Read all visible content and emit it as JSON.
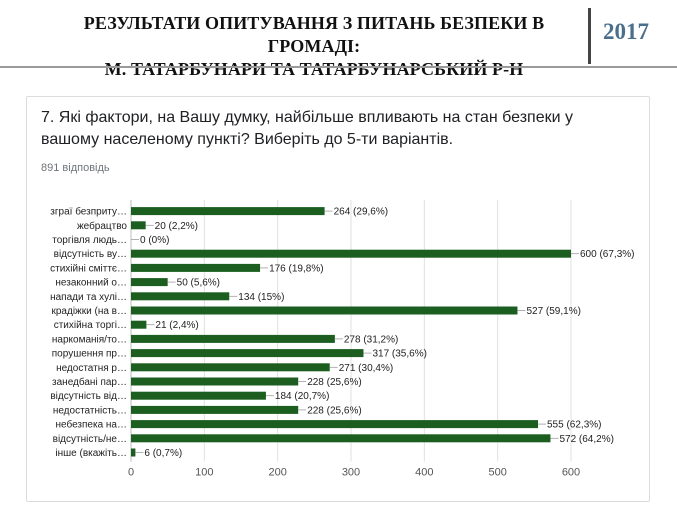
{
  "header": {
    "title_line1": "РЕЗУЛЬТАТИ ОПИТУВАННЯ З ПИТАНЬ БЕЗПЕКИ В ГРОМАДІ:",
    "title_line2": "М. ТАТАРБУНАРИ ТА ТАТАРБУНАРСЬКИЙ Р-Н",
    "year": "2017"
  },
  "question": {
    "text": "7. Які фактори, на Вашу думку, найбільше впливають на стан безпеки у вашому населеному пункті? Виберіть до 5-ти варіантів.",
    "responses": "891 відповідь"
  },
  "colors": {
    "bar": "#1b5e20",
    "grid": "#e0e0e0",
    "label": "#222222",
    "tick": "#555555"
  },
  "chart_data": {
    "type": "bar",
    "orientation": "horizontal",
    "categories": [
      "зграї безприту…",
      "жебрацтво",
      "торгівля людь…",
      "відсутність ву…",
      "стихійні сміттє…",
      "незаконний о…",
      "напади та хулі…",
      "крадіжки (на в…",
      "стихійна торгі…",
      "наркоманія/то…",
      "порушення пр…",
      "недостатня р…",
      "занедбані пар…",
      "відсутність від…",
      "недостатність…",
      "небезпека на…",
      "відсутність/не…",
      "інше (вкажіть…"
    ],
    "values": [
      264,
      20,
      0,
      600,
      176,
      50,
      134,
      527,
      21,
      278,
      317,
      271,
      228,
      184,
      228,
      555,
      572,
      6
    ],
    "value_labels": [
      "264 (29,6%)",
      "20 (2,2%)",
      "0 (0%)",
      "600 (67,3%)",
      "176 (19,8%)",
      "50 (5,6%)",
      "134 (15%)",
      "527 (59,1%)",
      "21 (2,4%)",
      "278 (31,2%)",
      "317 (35,6%)",
      "271 (30,4%)",
      "228 (25,6%)",
      "184 (20,7%)",
      "228 (25,6%)",
      "555 (62,3%)",
      "572 (64,2%)",
      "6 (0,7%)"
    ],
    "xlim": [
      0,
      600
    ],
    "xticks": [
      0,
      100,
      200,
      300,
      400,
      500,
      600
    ],
    "grid": true
  }
}
